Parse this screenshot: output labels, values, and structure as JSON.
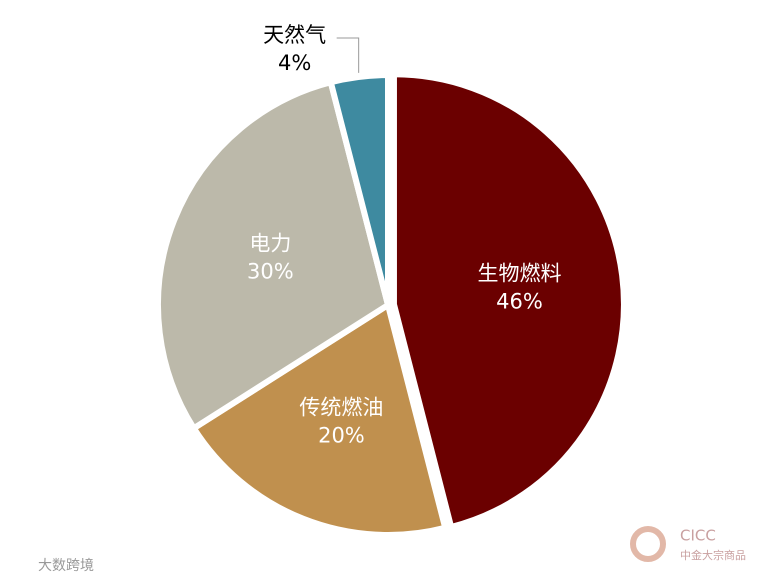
{
  "chart_data": {
    "type": "pie",
    "categories": [
      "生物燃料",
      "传统燃油",
      "电力",
      "天然气"
    ],
    "values": [
      46,
      20,
      30,
      4
    ],
    "value_labels": [
      "46%",
      "20%",
      "30%",
      "4%"
    ],
    "colors": [
      "#6b0000",
      "#c0904e",
      "#bcb9aa",
      "#3e8aa0"
    ]
  },
  "footer": {
    "logo_text": "CICC",
    "logo_subtext": "中金大宗商品",
    "watermark": "大数跨境"
  }
}
